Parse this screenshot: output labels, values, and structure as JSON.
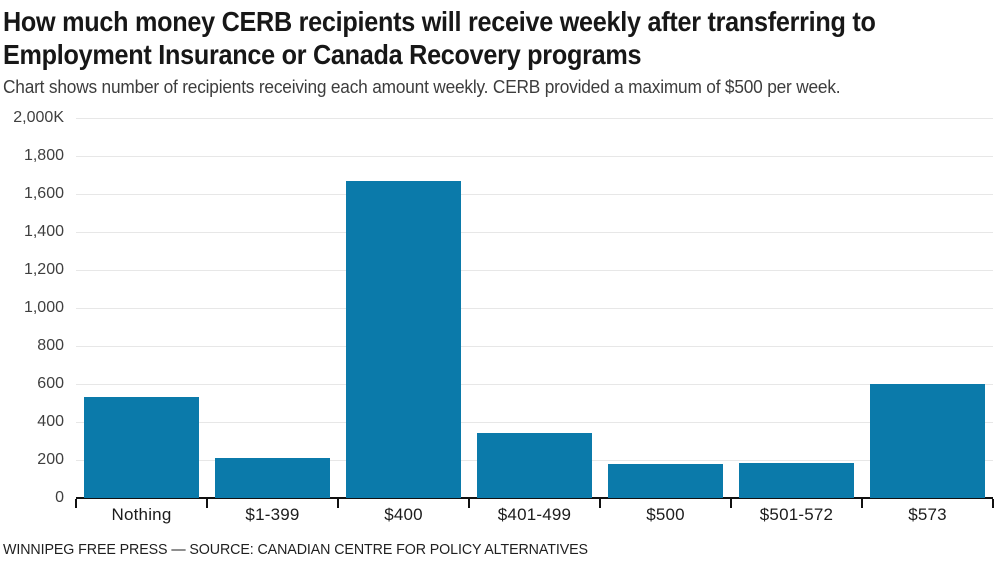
{
  "colors": {
    "bar": "#0b7aaa",
    "gridline": "#e7e7e7",
    "axis": "#111111",
    "title_text": "#171717",
    "subtitle_text": "#3d3d3d",
    "y_label_text": "#3f3f3f",
    "x_label_text": "#1c1c1c"
  },
  "footer": {
    "credit": "WINNIPEG FREE PRESS — SOURCE: CANADIAN CENTRE FOR POLICY ALTERNATIVES"
  },
  "chart_data": {
    "type": "bar",
    "title": "How much money CERB recipients will receive weekly after transferring to Employment Insurance or Canada Recovery programs",
    "title_lines": [
      "How much money CERB recipients will receive weekly after transferring to",
      "Employment Insurance or Canada Recovery programs"
    ],
    "subtitle": "Chart shows number of recipients receiving each amount weekly. CERB provided a maximum of $500 per week.",
    "xlabel": "",
    "ylabel": "",
    "categories": [
      "Nothing",
      "$1-399",
      "$400",
      "$401-499",
      "$500",
      "$501-572",
      "$573"
    ],
    "values": [
      530,
      210,
      1670,
      340,
      180,
      185,
      600
    ],
    "values_unit": "thousands of recipients (K)",
    "ylim": [
      0,
      2000
    ],
    "yticks": [
      {
        "value": 0,
        "label": "0"
      },
      {
        "value": 200,
        "label": "200"
      },
      {
        "value": 400,
        "label": "400"
      },
      {
        "value": 600,
        "label": "600"
      },
      {
        "value": 800,
        "label": "800"
      },
      {
        "value": 1000,
        "label": "1,000"
      },
      {
        "value": 1200,
        "label": "1,200"
      },
      {
        "value": 1400,
        "label": "1,400"
      },
      {
        "value": 1600,
        "label": "1,600"
      },
      {
        "value": 1800,
        "label": "1,800"
      },
      {
        "value": 2000,
        "label": "2,000K"
      }
    ],
    "grid": "horizontal",
    "legend": "none",
    "bar_color": "#0b7aaa"
  }
}
